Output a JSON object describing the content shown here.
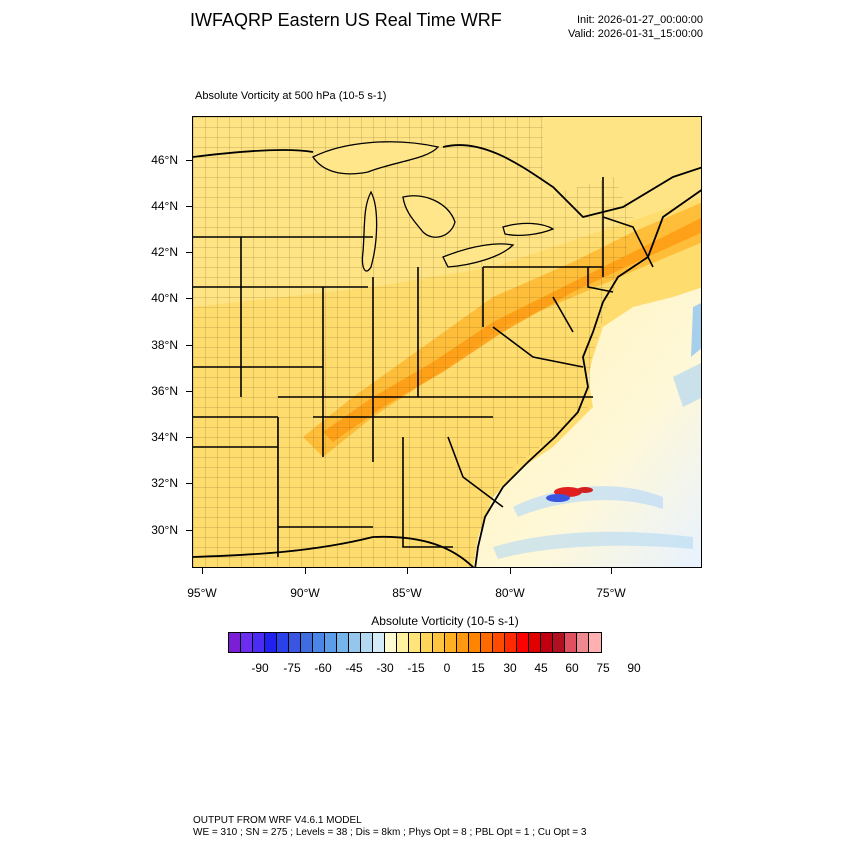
{
  "header": {
    "title": "IWFAQRP Eastern US Real Time WRF",
    "init": "Init: 2026-01-27_00:00:00",
    "valid": "Valid: 2026-01-31_15:00:00"
  },
  "plot": {
    "title": "Absolute Vorticity at 500 hPa   (10-5 s-1)"
  },
  "map": {
    "lat_labels": [
      "46°N",
      "44°N",
      "42°N",
      "40°N",
      "38°N",
      "36°N",
      "34°N",
      "32°N",
      "30°N"
    ],
    "lon_labels": [
      "95°W",
      "90°W",
      "85°W",
      "80°W",
      "75°W"
    ]
  },
  "colorbar": {
    "title": "Absolute Vorticity  (10-5 s-1)",
    "labels": [
      "-90",
      "-75",
      "-60",
      "-45",
      "-30",
      "-15",
      "0",
      "15",
      "30",
      "45",
      "60",
      "75",
      "90"
    ],
    "colors": [
      "#7a1fd6",
      "#6b2df0",
      "#4b2cf5",
      "#2020f0",
      "#2a40e8",
      "#3a55e0",
      "#3f6de0",
      "#4a85e8",
      "#5c9de8",
      "#76b4ec",
      "#94c6ee",
      "#b2d8f2",
      "#d4ecf8",
      "#fffbd0",
      "#fff2a0",
      "#ffe47c",
      "#ffd45a",
      "#ffc440",
      "#ffb020",
      "#ff9a10",
      "#ff8400",
      "#ff6a00",
      "#ff4a00",
      "#ff2a00",
      "#ff0000",
      "#e00000",
      "#c00010",
      "#b01020",
      "#e05060",
      "#f08890",
      "#ffb0b0"
    ]
  },
  "footer": {
    "line1": "OUTPUT FROM WRF V4.6.1 MODEL",
    "line2": "WE = 310 ; SN = 275 ; Levels = 38 ; Dis = 8km ; Phys Opt = 8 ; PBL Opt = 1 ; Cu Opt = 3"
  }
}
